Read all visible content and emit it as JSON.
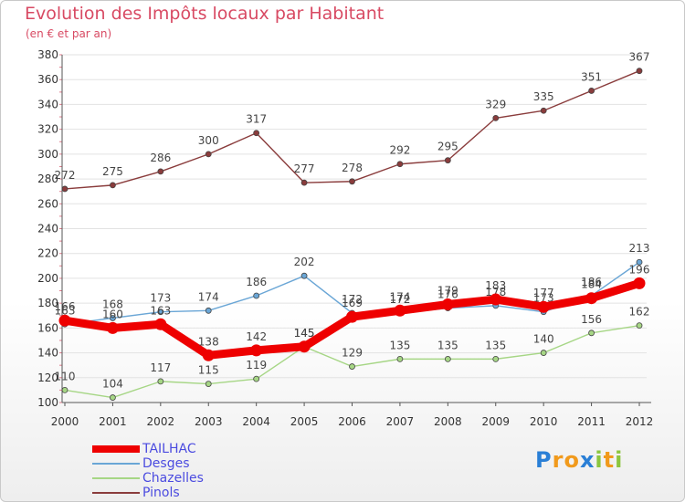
{
  "header": {
    "title": "Evolution des Impôts locaux par Habitant",
    "subtitle": "(en € et par an)"
  },
  "brand": {
    "name": "Proxiti",
    "letters": [
      {
        "ch": "P",
        "color": "#2a7fd6"
      },
      {
        "ch": "r",
        "color": "#f19a1c"
      },
      {
        "ch": "o",
        "color": "#f19a1c"
      },
      {
        "ch": "x",
        "color": "#2a7fd6"
      },
      {
        "ch": "i",
        "color": "#8cc63f"
      },
      {
        "ch": "t",
        "color": "#f19a1c"
      },
      {
        "ch": "i",
        "color": "#8cc63f"
      }
    ]
  },
  "chart_data": {
    "type": "line",
    "title": "Evolution des Impôts locaux par Habitant",
    "subtitle": "(en € et par an)",
    "xlabel": "",
    "ylabel": "",
    "x": [
      2000,
      2001,
      2002,
      2003,
      2004,
      2005,
      2006,
      2007,
      2008,
      2009,
      2010,
      2011,
      2012
    ],
    "ylim": [
      100,
      380
    ],
    "yticks": [
      100,
      120,
      140,
      160,
      180,
      200,
      220,
      240,
      260,
      280,
      300,
      320,
      340,
      360,
      380
    ],
    "grid": "horizontal",
    "legend_position": "bottom-left",
    "series": [
      {
        "name": "TAILHAC",
        "color": "#ee0000",
        "emphasis": true,
        "values": [
          166,
          160,
          163,
          138,
          142,
          145,
          169,
          174,
          179,
          183,
          177,
          184,
          196
        ]
      },
      {
        "name": "Desges",
        "color": "#6aa6d6",
        "emphasis": false,
        "values": [
          163,
          168,
          173,
          174,
          186,
          202,
          172,
          172,
          176,
          178,
          173,
          186,
          213
        ]
      },
      {
        "name": "Chazelles",
        "color": "#a6d685",
        "emphasis": false,
        "values": [
          110,
          104,
          117,
          115,
          119,
          145,
          129,
          135,
          135,
          135,
          140,
          156,
          162
        ]
      },
      {
        "name": "Pinols",
        "color": "#8a3c3c",
        "emphasis": false,
        "values": [
          272,
          275,
          286,
          300,
          317,
          277,
          278,
          292,
          295,
          329,
          335,
          351,
          367
        ]
      }
    ]
  }
}
